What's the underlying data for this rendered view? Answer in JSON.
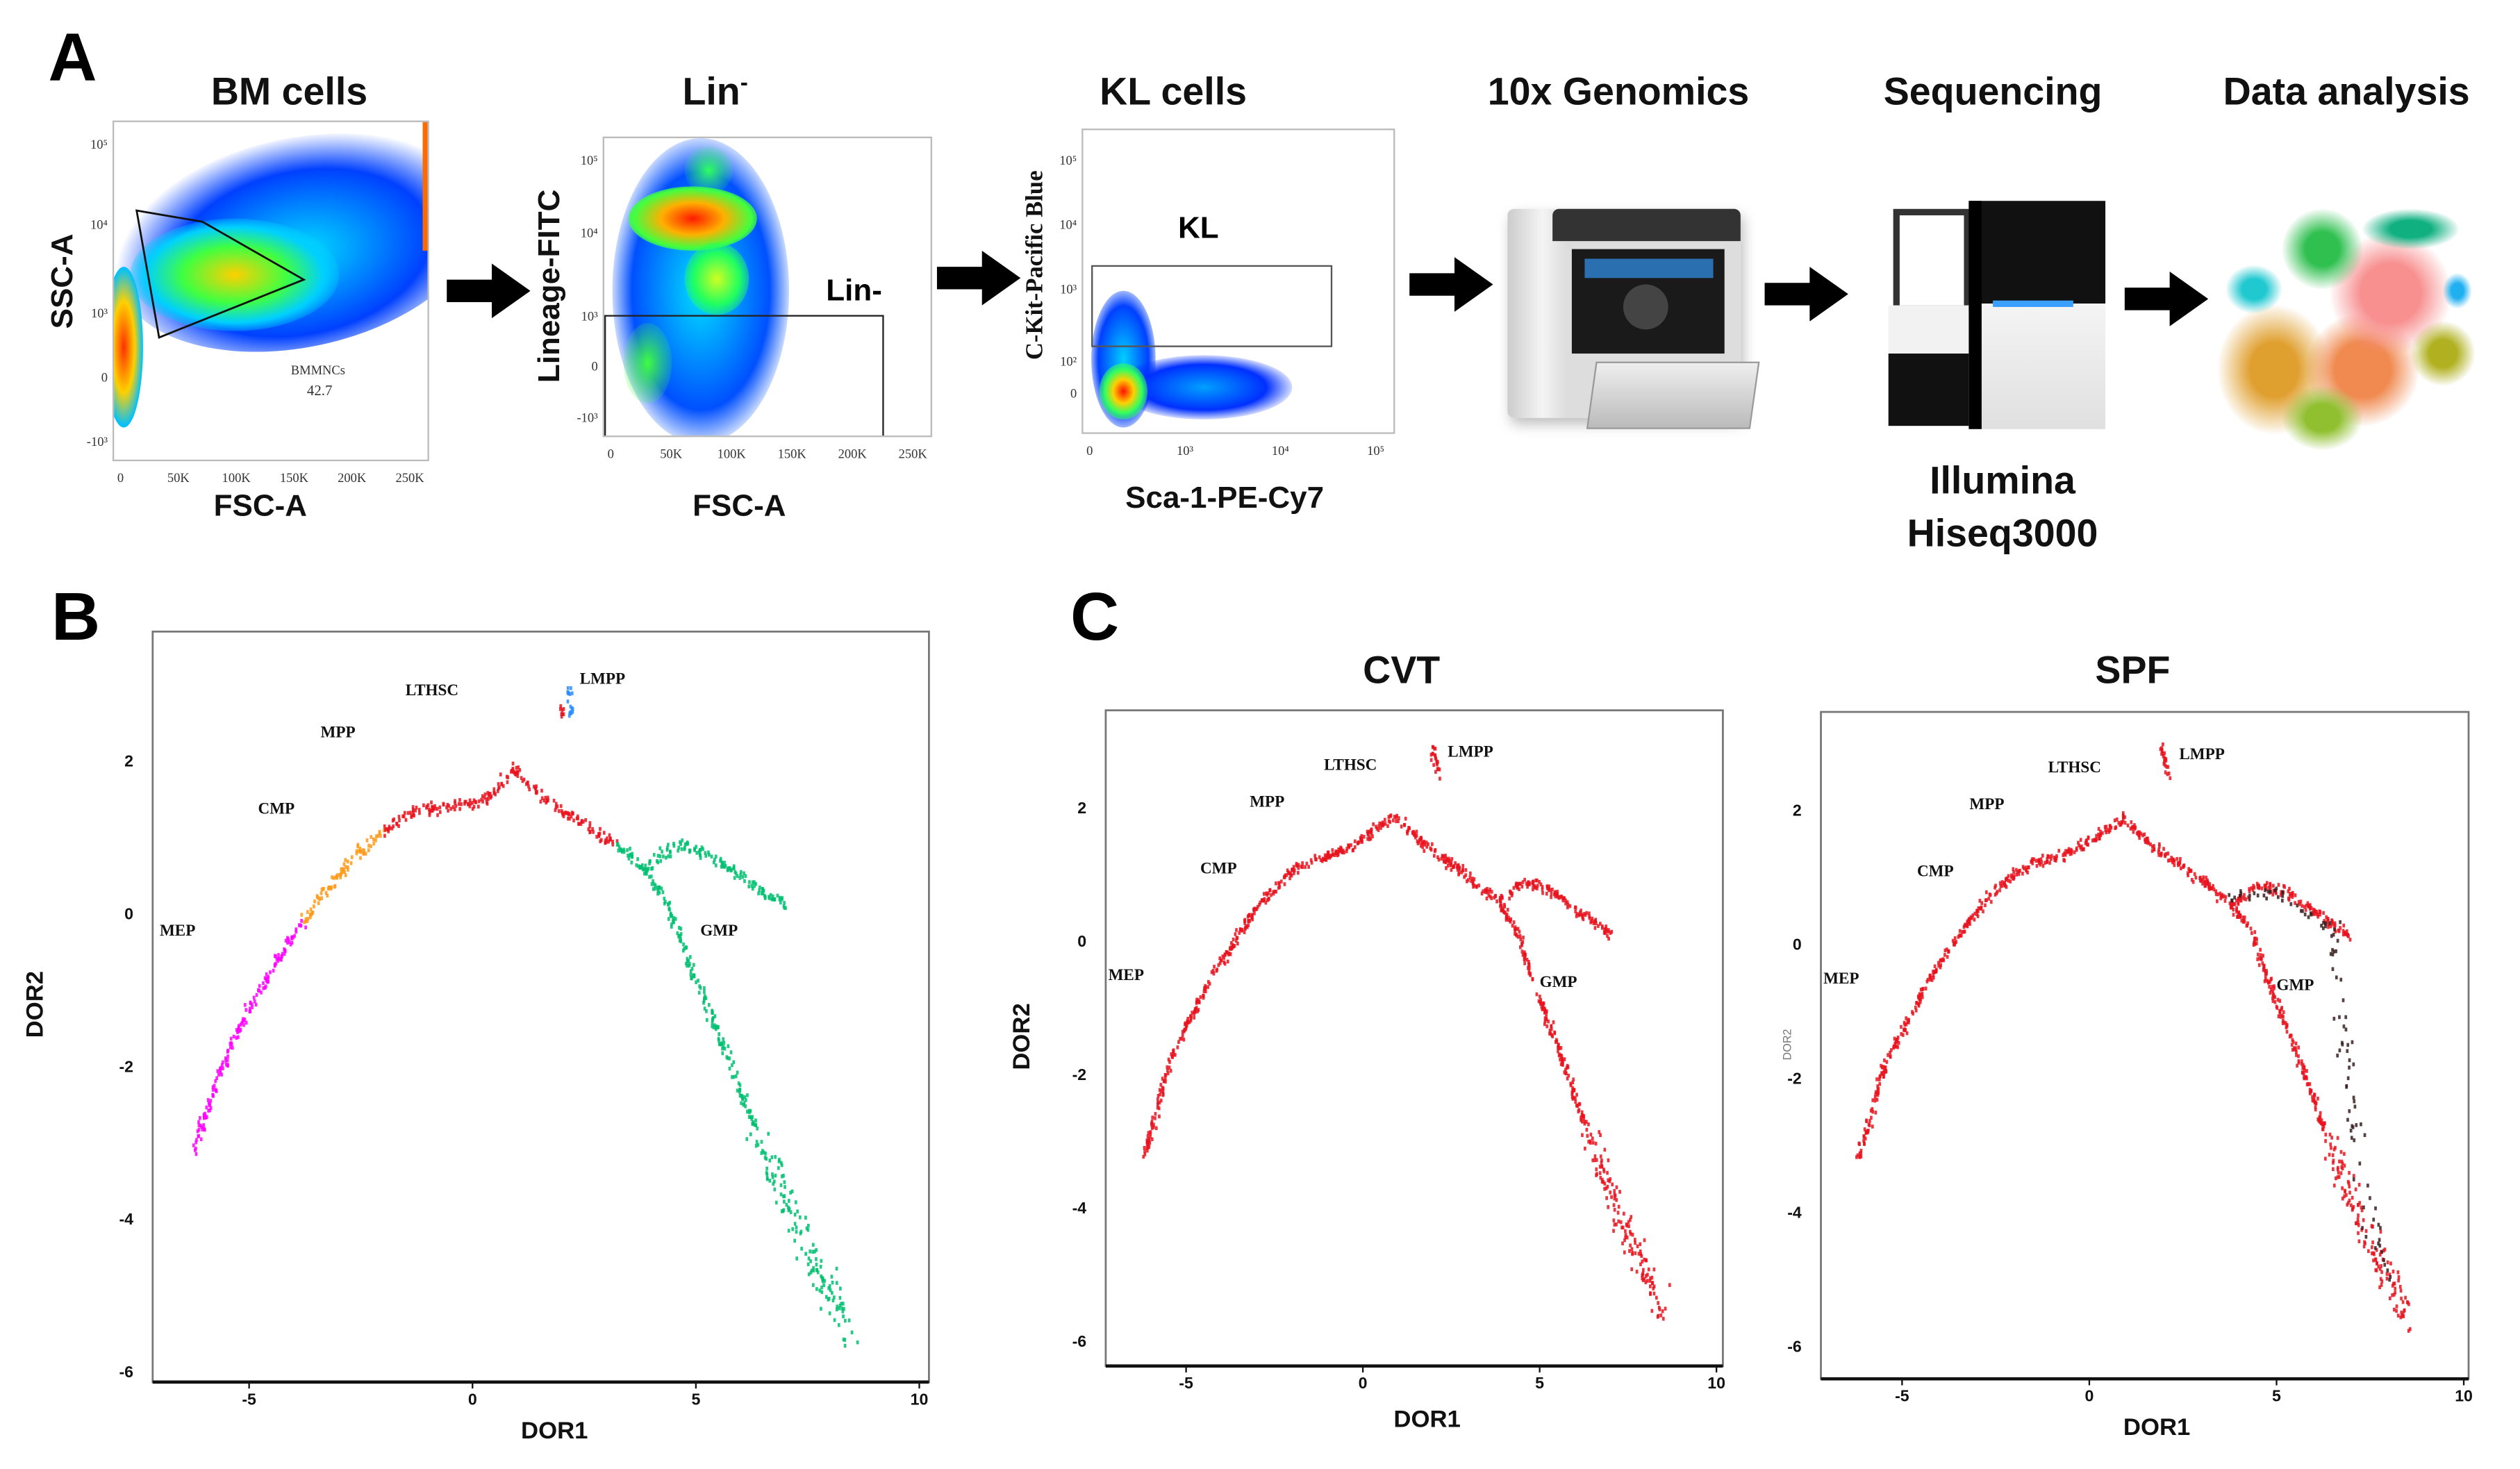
{
  "panel_labels": {
    "a": "A",
    "b": "B",
    "c": "C"
  },
  "workflow": {
    "steps": [
      "BM cells",
      "Lin",
      "KL cells",
      "10x Genomics",
      "Sequencing",
      "Data analysis"
    ],
    "lin_superscript": "-",
    "sequencer_caption": [
      "Illumina",
      "Hiseq3000"
    ]
  },
  "flow_plots": [
    {
      "ylabel": "SSC-A",
      "xlabel": "FSC-A",
      "yticks": [
        "10⁵",
        "10⁴",
        "10³",
        "0",
        "-10³"
      ],
      "xticks": [
        "0",
        "50K",
        "100K",
        "150K",
        "200K",
        "250K"
      ],
      "gate_name": "BMMNCs",
      "gate_value": "42.7"
    },
    {
      "ylabel": "Lineage-FITC",
      "xlabel": "FSC-A",
      "yticks": [
        "10⁵",
        "10⁴",
        "10³",
        "0",
        "-10³"
      ],
      "xticks": [
        "0",
        "50K",
        "100K",
        "150K",
        "200K",
        "250K"
      ],
      "gate_name": "Lin-"
    },
    {
      "ylabel": "C-Kit-Pacific Blue",
      "xlabel": "Sca-1-PE-Cy7",
      "yticks": [
        "10⁵",
        "10⁴",
        "10³",
        "10²",
        "0"
      ],
      "xticks": [
        "0",
        "10³",
        "10⁴",
        "10⁵"
      ],
      "gate_name": "KL"
    }
  ],
  "colors": {
    "magenta": "#ff00ff",
    "orange": "#ff9a1a",
    "red": "#e8141e",
    "green": "#00c070",
    "blue": "#2a8cff",
    "dark": "#3a2020"
  },
  "chart_data": [
    {
      "id": "B",
      "type": "scatter",
      "title": "",
      "xlabel": "DOR1",
      "ylabel": "DOR2",
      "xlim": [
        -7.2,
        10
      ],
      "ylim": [
        -6.2,
        3.7
      ],
      "xticks": [
        "-5",
        "0",
        "5",
        "10"
      ],
      "xtick_values": [
        -5,
        0,
        5,
        10
      ],
      "yticks": [
        "2",
        "0",
        "-2",
        "-4",
        "-6"
      ],
      "ytick_values": [
        2,
        0,
        -2,
        -4,
        -6
      ],
      "annotations": [
        {
          "text": "LTHSC",
          "x": -1.5,
          "y": 2.85
        },
        {
          "text": "MPP",
          "x": -3.4,
          "y": 2.3
        },
        {
          "text": "CMP",
          "x": -4.8,
          "y": 1.3
        },
        {
          "text": "MEP",
          "x": -7.0,
          "y": -0.3
        },
        {
          "text": "LMPP",
          "x": 2.4,
          "y": 3.0
        },
        {
          "text": "GMP",
          "x": 5.1,
          "y": -0.3
        }
      ],
      "series": [
        {
          "color": "#ff00ff",
          "points": [
            [
              -6.3,
              -3.2
            ],
            [
              -6.0,
              -2.6
            ],
            [
              -5.5,
              -1.8
            ],
            [
              -5.0,
              -1.2
            ],
            [
              -4.4,
              -0.6
            ],
            [
              -3.8,
              -0.1
            ]
          ]
        },
        {
          "color": "#ff9a1a",
          "points": [
            [
              -3.8,
              -0.1
            ],
            [
              -3.2,
              0.4
            ],
            [
              -2.6,
              0.8
            ],
            [
              -2.0,
              1.1
            ]
          ]
        },
        {
          "color": "#e8141e",
          "points": [
            [
              -2.0,
              1.1
            ],
            [
              -1.2,
              1.4
            ],
            [
              -0.5,
              1.4
            ],
            [
              0.3,
              1.5
            ],
            [
              0.9,
              1.9
            ],
            [
              1.6,
              1.5
            ],
            [
              2.4,
              1.2
            ],
            [
              3.2,
              0.9
            ]
          ]
        },
        {
          "color": "#00c070",
          "points": [
            [
              3.2,
              0.9
            ],
            [
              3.8,
              0.6
            ],
            [
              4.3,
              0.2
            ],
            [
              4.8,
              -0.6
            ],
            [
              5.5,
              -1.6
            ],
            [
              6.3,
              -2.8
            ],
            [
              7.0,
              -3.8
            ],
            [
              7.8,
              -4.8
            ],
            [
              8.5,
              -5.6
            ]
          ]
        },
        {
          "color": "#00c070",
          "points": [
            [
              3.8,
              0.6
            ],
            [
              4.5,
              0.9
            ],
            [
              5.2,
              0.8
            ],
            [
              6.0,
              0.5
            ],
            [
              7.0,
              0.1
            ]
          ]
        },
        {
          "color": "#2a8cff",
          "points": [
            [
              2.1,
              3.0
            ],
            [
              2.2,
              2.6
            ]
          ]
        },
        {
          "color": "#e8141e",
          "points": [
            [
              1.9,
              2.8
            ],
            [
              2.0,
              2.6
            ]
          ]
        }
      ]
    },
    {
      "id": "CVT",
      "type": "scatter",
      "title": "CVT",
      "xlabel": "DOR1",
      "ylabel": "DOR2",
      "xlim": [
        -7.3,
        10.2
      ],
      "ylim": [
        -6.4,
        3.4
      ],
      "xticks": [
        "-5",
        "0",
        "5",
        "10"
      ],
      "xtick_values": [
        -5,
        0,
        5,
        10
      ],
      "yticks": [
        "2",
        "0",
        "-2",
        "-4",
        "-6"
      ],
      "ytick_values": [
        2,
        0,
        -2,
        -4,
        -6
      ],
      "annotations": [
        {
          "text": "LTHSC",
          "x": -1.1,
          "y": 2.55
        },
        {
          "text": "MPP",
          "x": -3.2,
          "y": 2.0
        },
        {
          "text": "CMP",
          "x": -4.6,
          "y": 1.0
        },
        {
          "text": "MEP",
          "x": -7.2,
          "y": -0.6
        },
        {
          "text": "LMPP",
          "x": 2.4,
          "y": 2.75
        },
        {
          "text": "GMP",
          "x": 5.0,
          "y": -0.7
        }
      ],
      "series": [
        {
          "color": "#e8141e",
          "points": [
            [
              -6.2,
              -3.2
            ],
            [
              -5.5,
              -1.8
            ],
            [
              -4.4,
              -0.6
            ],
            [
              -3.2,
              0.4
            ],
            [
              -2.0,
              1.1
            ],
            [
              -0.5,
              1.4
            ],
            [
              0.9,
              1.9
            ],
            [
              1.6,
              1.5
            ],
            [
              2.4,
              1.2
            ],
            [
              3.8,
              0.6
            ],
            [
              4.3,
              0.2
            ],
            [
              4.8,
              -0.6
            ],
            [
              5.5,
              -1.6
            ],
            [
              6.3,
              -2.8
            ],
            [
              7.0,
              -3.8
            ],
            [
              7.8,
              -4.8
            ],
            [
              8.5,
              -5.6
            ]
          ]
        },
        {
          "color": "#e8141e",
          "points": [
            [
              3.8,
              0.6
            ],
            [
              4.5,
              0.9
            ],
            [
              5.2,
              0.8
            ],
            [
              6.0,
              0.5
            ],
            [
              7.0,
              0.1
            ]
          ]
        },
        {
          "color": "#e8141e",
          "points": [
            [
              1.9,
              3.0
            ],
            [
              2.1,
              2.5
            ]
          ]
        }
      ]
    },
    {
      "id": "SPF",
      "type": "scatter",
      "title": "SPF",
      "xlabel": "DOR1",
      "ylabel": "DOR2",
      "xlim": [
        -7.2,
        10.2
      ],
      "ylim": [
        -6.5,
        3.4
      ],
      "xticks": [
        "-5",
        "0",
        "5",
        "10"
      ],
      "xtick_values": [
        -5,
        0,
        5,
        10
      ],
      "yticks": [
        "2",
        "0",
        "-2",
        "-4",
        "-6"
      ],
      "ytick_values": [
        2,
        0,
        -2,
        -4,
        -6
      ],
      "annotations": [
        {
          "text": "LTHSC",
          "x": -1.1,
          "y": 2.55
        },
        {
          "text": "MPP",
          "x": -3.2,
          "y": 2.0
        },
        {
          "text": "CMP",
          "x": -4.6,
          "y": 1.0
        },
        {
          "text": "MEP",
          "x": -7.1,
          "y": -0.6
        },
        {
          "text": "LMPP",
          "x": 2.4,
          "y": 2.75
        },
        {
          "text": "GMP",
          "x": 5.0,
          "y": -0.7
        }
      ],
      "series": [
        {
          "color": "#e8141e",
          "points": [
            [
              -6.2,
              -3.2
            ],
            [
              -5.5,
              -1.8
            ],
            [
              -4.4,
              -0.6
            ],
            [
              -3.2,
              0.4
            ],
            [
              -2.0,
              1.1
            ],
            [
              -0.5,
              1.4
            ],
            [
              0.9,
              1.9
            ],
            [
              1.6,
              1.5
            ],
            [
              2.4,
              1.2
            ],
            [
              3.8,
              0.6
            ],
            [
              4.3,
              0.2
            ],
            [
              4.8,
              -0.6
            ],
            [
              5.5,
              -1.6
            ],
            [
              6.3,
              -2.8
            ],
            [
              7.0,
              -3.8
            ],
            [
              7.8,
              -4.8
            ],
            [
              8.5,
              -5.6
            ]
          ]
        },
        {
          "color": "#e8141e",
          "points": [
            [
              3.8,
              0.6
            ],
            [
              4.5,
              0.9
            ],
            [
              5.2,
              0.8
            ],
            [
              6.0,
              0.5
            ],
            [
              7.0,
              0.1
            ]
          ]
        },
        {
          "color": "#e8141e",
          "points": [
            [
              1.9,
              3.0
            ],
            [
              2.1,
              2.5
            ]
          ]
        },
        {
          "color": "#3a2020",
          "points": [
            [
              3.5,
              0.7
            ],
            [
              5.0,
              0.8
            ],
            [
              6.5,
              0.2
            ],
            [
              7.2,
              -3.6
            ],
            [
              8.0,
              -5.0
            ]
          ]
        }
      ]
    }
  ]
}
